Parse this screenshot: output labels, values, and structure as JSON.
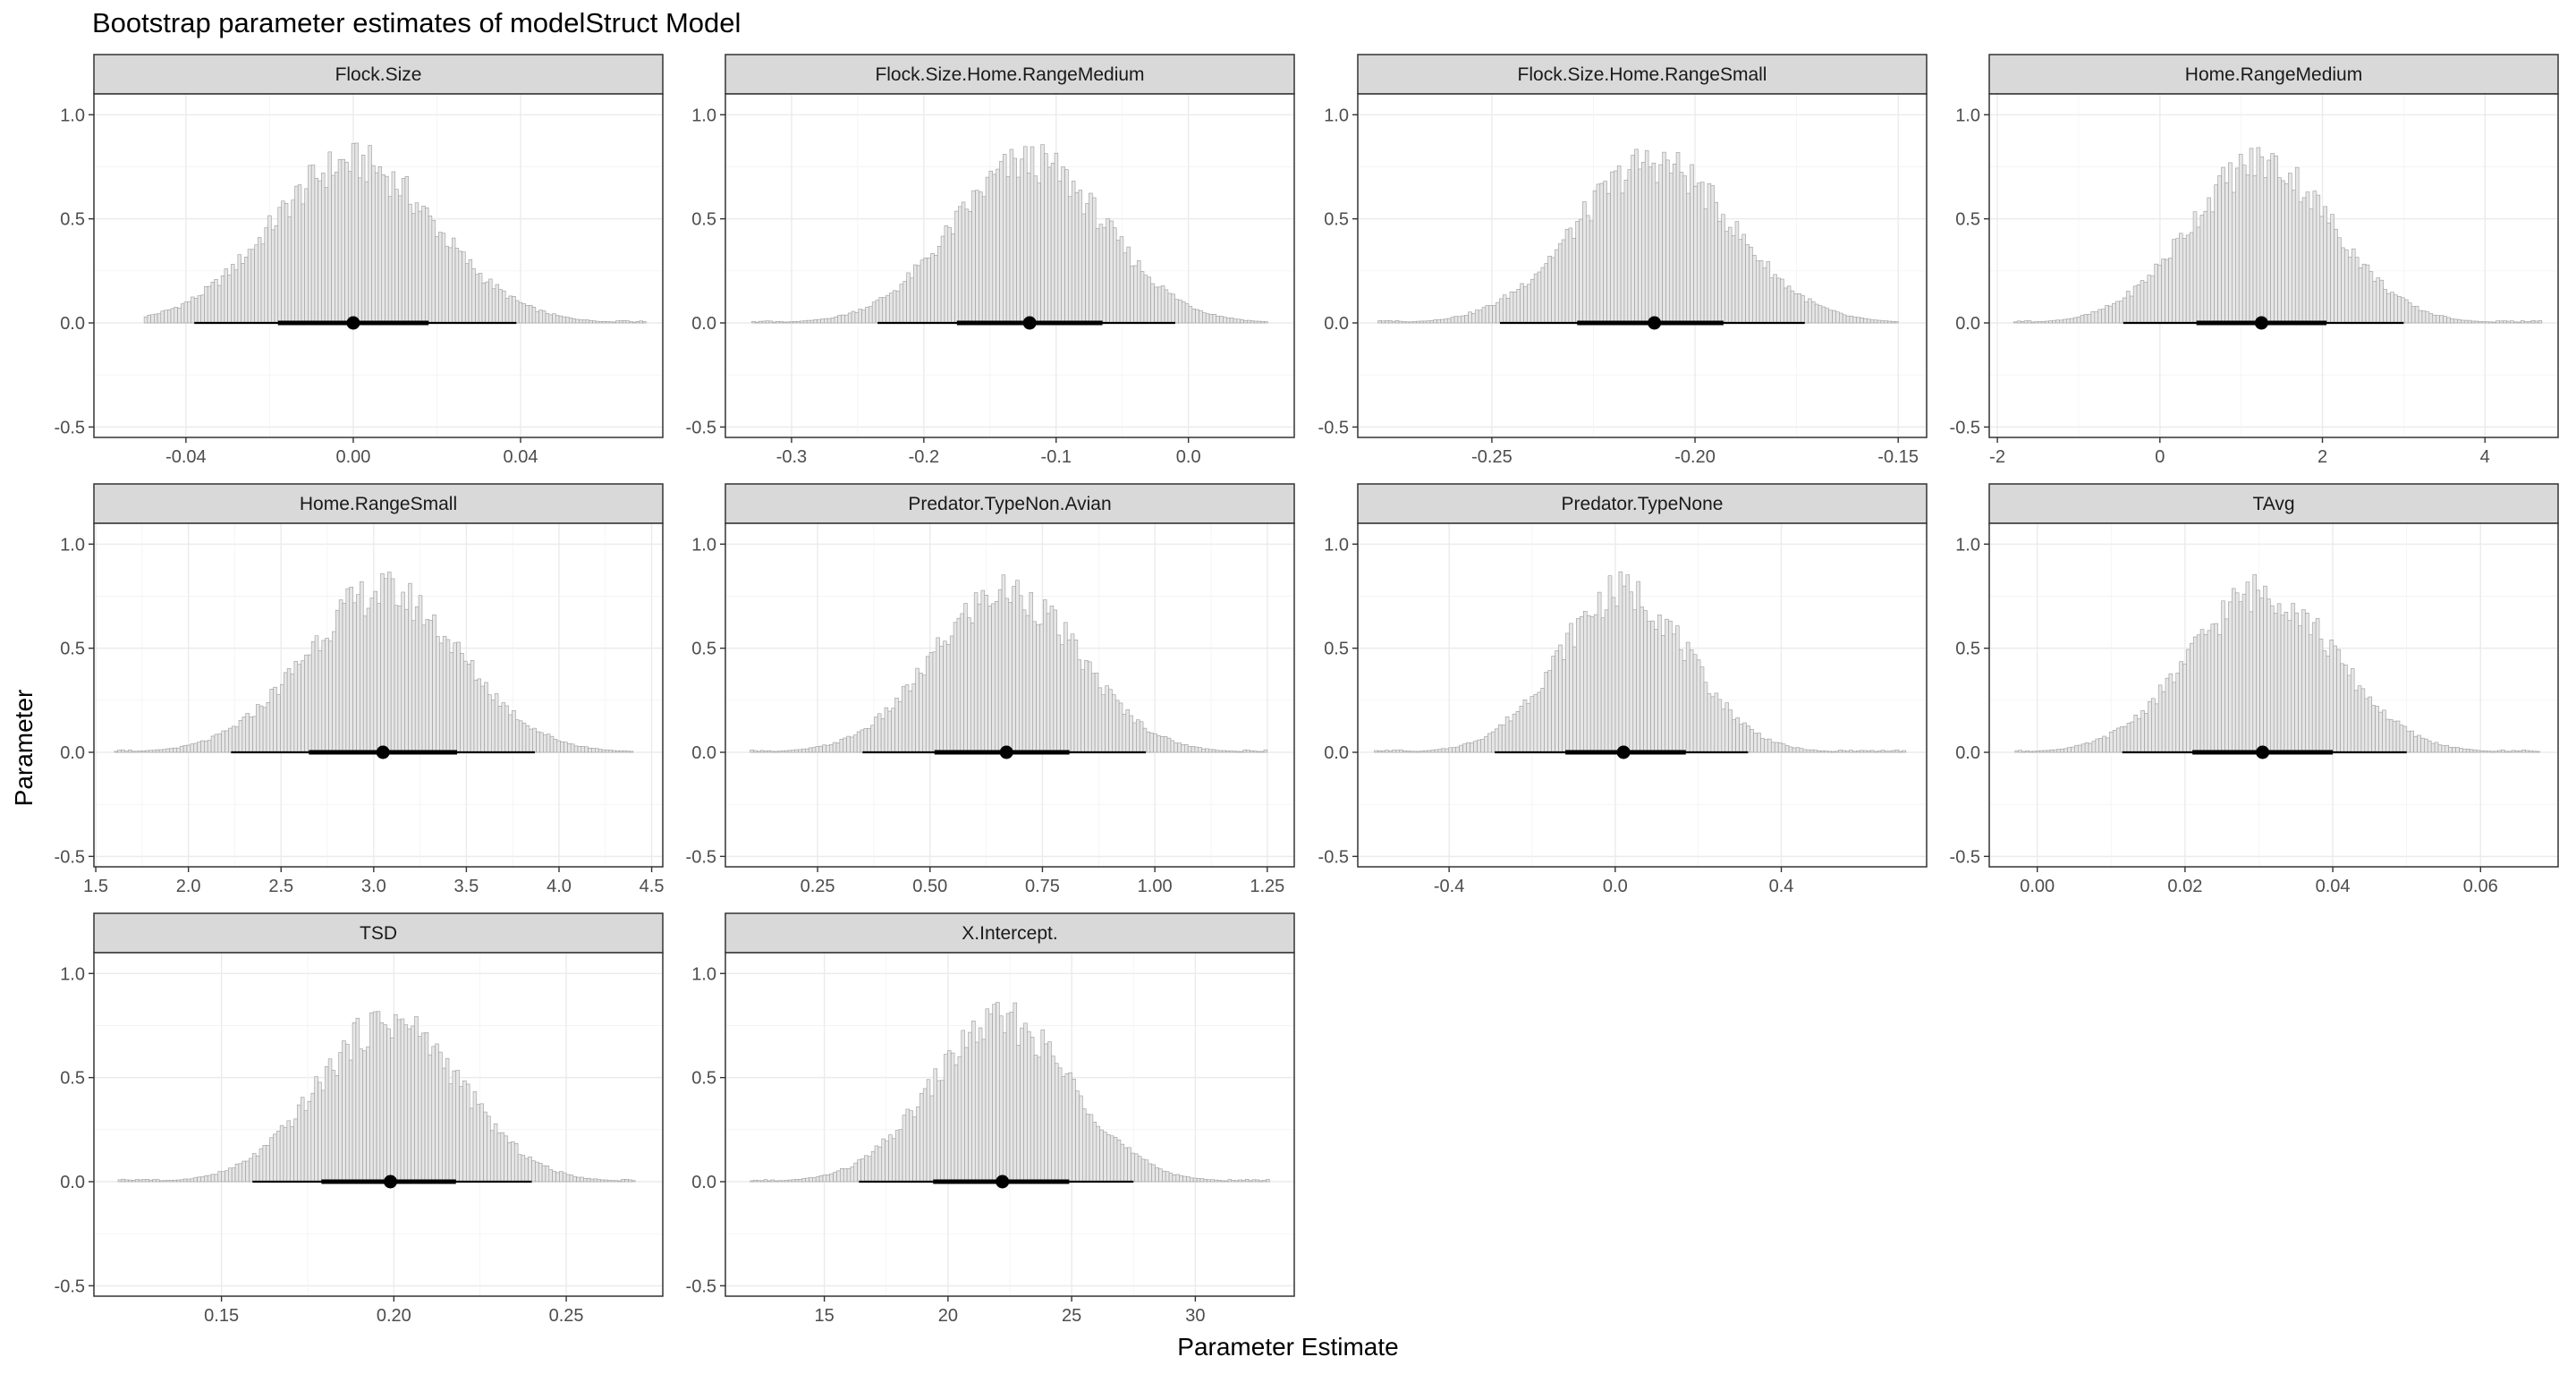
{
  "chart_data": {
    "type": "facet-histogram",
    "title": "Bootstrap parameter estimates of modelStruct Model",
    "xlabel": "Parameter Estimate",
    "ylabel": "Parameter",
    "ylim": [
      -0.55,
      1.1
    ],
    "y_ticks": [
      -0.5,
      0.0,
      0.5,
      1.0
    ],
    "y_tick_labels": [
      "-0.5",
      "0.0",
      "0.5",
      "1.0"
    ],
    "grid": true,
    "panels": [
      {
        "name": "Flock.Size",
        "xlim": [
          -0.062,
          0.074
        ],
        "x_ticks": [
          -0.04,
          0.0,
          0.04
        ],
        "x_tick_labels": [
          "-0.04",
          "0.00",
          "0.04"
        ],
        "hist_range": [
          -0.05,
          0.07
        ],
        "median": 0.0,
        "ci_inner": [
          -0.018,
          0.018
        ],
        "ci_outer": [
          -0.038,
          0.039
        ]
      },
      {
        "name": "Flock.Size.Home.RangeMedium",
        "xlim": [
          -0.35,
          0.08
        ],
        "x_ticks": [
          -0.3,
          -0.2,
          -0.1,
          0.0
        ],
        "x_tick_labels": [
          "-0.3",
          "-0.2",
          "-0.1",
          "0.0"
        ],
        "hist_range": [
          -0.33,
          0.06
        ],
        "median": -0.12,
        "ci_inner": [
          -0.175,
          -0.065
        ],
        "ci_outer": [
          -0.235,
          -0.01
        ]
      },
      {
        "name": "Flock.Size.Home.RangeSmall",
        "xlim": [
          -0.283,
          -0.143
        ],
        "x_ticks": [
          -0.25,
          -0.2,
          -0.15
        ],
        "x_tick_labels": [
          "-0.25",
          "-0.20",
          "-0.15"
        ],
        "hist_range": [
          -0.278,
          -0.15
        ],
        "median": -0.21,
        "ci_inner": [
          -0.229,
          -0.193
        ],
        "ci_outer": [
          -0.248,
          -0.173
        ]
      },
      {
        "name": "Home.RangeMedium",
        "xlim": [
          -2.1,
          4.9
        ],
        "x_ticks": [
          -2,
          0,
          2,
          4
        ],
        "x_tick_labels": [
          "-2",
          "0",
          "2",
          "4"
        ],
        "hist_range": [
          -1.8,
          4.7
        ],
        "median": 1.25,
        "ci_inner": [
          0.45,
          2.05
        ],
        "ci_outer": [
          -0.45,
          3.0
        ]
      },
      {
        "name": "Home.RangeSmall",
        "xlim": [
          1.49,
          4.56
        ],
        "x_ticks": [
          1.5,
          2.0,
          2.5,
          3.0,
          3.5,
          4.0,
          4.5
        ],
        "x_tick_labels": [
          "1.5",
          "2.0",
          "2.5",
          "3.0",
          "3.5",
          "4.0",
          "4.5"
        ],
        "hist_range": [
          1.6,
          4.4
        ],
        "median": 3.05,
        "ci_inner": [
          2.65,
          3.45
        ],
        "ci_outer": [
          2.23,
          3.87
        ]
      },
      {
        "name": "Predator.TypeNon.Avian",
        "xlim": [
          0.045,
          1.31
        ],
        "x_ticks": [
          0.25,
          0.5,
          0.75,
          1.0,
          1.25
        ],
        "x_tick_labels": [
          "0.25",
          "0.50",
          "0.75",
          "1.00",
          "1.25"
        ],
        "hist_range": [
          0.1,
          1.25
        ],
        "median": 0.67,
        "ci_inner": [
          0.51,
          0.81
        ],
        "ci_outer": [
          0.35,
          0.98
        ]
      },
      {
        "name": "Predator.TypeNone",
        "xlim": [
          -0.62,
          0.75
        ],
        "x_ticks": [
          -0.4,
          0.0,
          0.4
        ],
        "x_tick_labels": [
          "-0.4",
          "0.0",
          "0.4"
        ],
        "hist_range": [
          -0.58,
          0.7
        ],
        "median": 0.02,
        "ci_inner": [
          -0.12,
          0.17
        ],
        "ci_outer": [
          -0.29,
          0.32
        ]
      },
      {
        "name": "TAvg",
        "xlim": [
          -0.0065,
          0.0705
        ],
        "x_ticks": [
          0.0,
          0.02,
          0.04,
          0.06
        ],
        "x_tick_labels": [
          "0.00",
          "0.02",
          "0.04",
          "0.06"
        ],
        "hist_range": [
          -0.003,
          0.068
        ],
        "median": 0.0305,
        "ci_inner": [
          0.021,
          0.04
        ],
        "ci_outer": [
          0.0115,
          0.05
        ]
      },
      {
        "name": "TSD",
        "xlim": [
          0.113,
          0.278
        ],
        "x_ticks": [
          0.15,
          0.2,
          0.25
        ],
        "x_tick_labels": [
          "0.15",
          "0.20",
          "0.25"
        ],
        "hist_range": [
          0.12,
          0.27
        ],
        "median": 0.199,
        "ci_inner": [
          0.179,
          0.218
        ],
        "ci_outer": [
          0.159,
          0.24
        ]
      },
      {
        "name": "X.Intercept.",
        "xlim": [
          11.0,
          34.0
        ],
        "x_ticks": [
          15,
          20,
          25,
          30
        ],
        "x_tick_labels": [
          "15",
          "20",
          "25",
          "30"
        ],
        "hist_range": [
          12.0,
          33.0
        ],
        "median": 22.2,
        "ci_inner": [
          19.4,
          24.9
        ],
        "ci_outer": [
          16.4,
          27.5
        ]
      }
    ]
  }
}
